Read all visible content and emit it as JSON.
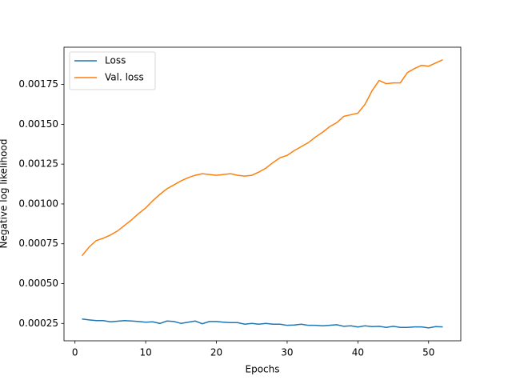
{
  "chart_data": {
    "type": "line",
    "xlabel": "Epochs",
    "ylabel": "Negative log likelihood",
    "x": [
      1,
      2,
      3,
      4,
      5,
      6,
      7,
      8,
      9,
      10,
      11,
      12,
      13,
      14,
      15,
      16,
      17,
      18,
      19,
      20,
      21,
      22,
      23,
      24,
      25,
      26,
      27,
      28,
      29,
      30,
      31,
      32,
      33,
      34,
      35,
      36,
      37,
      38,
      39,
      40,
      41,
      42,
      43,
      44,
      45,
      46,
      47,
      48,
      49,
      50,
      51,
      52
    ],
    "series": [
      {
        "name": "Loss",
        "color": "#1f77b4",
        "values": [
          0.000278,
          0.000272,
          0.000268,
          0.000268,
          0.00026,
          0.000264,
          0.000268,
          0.000265,
          0.000262,
          0.000258,
          0.00026,
          0.00025,
          0.000265,
          0.000262,
          0.00025,
          0.000258,
          0.000265,
          0.000248,
          0.000262,
          0.000262,
          0.000258,
          0.000255,
          0.000255,
          0.000245,
          0.00025,
          0.000245,
          0.00025,
          0.000245,
          0.000245,
          0.000238,
          0.00024,
          0.000245,
          0.000238,
          0.000238,
          0.000235,
          0.000238,
          0.000242,
          0.000232,
          0.000235,
          0.000228,
          0.000235,
          0.00023,
          0.000232,
          0.000225,
          0.000232,
          0.000225,
          0.000225,
          0.000228,
          0.000228,
          0.000222,
          0.00023,
          0.000228
        ]
      },
      {
        "name": "Val. loss",
        "color": "#ff7f0e",
        "values": [
          0.000675,
          0.00073,
          0.00077,
          0.000785,
          0.000805,
          0.00083,
          0.000865,
          0.0009,
          0.00094,
          0.000975,
          0.00102,
          0.00106,
          0.001095,
          0.00112,
          0.001145,
          0.001165,
          0.00118,
          0.00119,
          0.001185,
          0.00118,
          0.001185,
          0.00119,
          0.00118,
          0.001175,
          0.00118,
          0.0012,
          0.001225,
          0.00126,
          0.00129,
          0.001305,
          0.001335,
          0.00136,
          0.001385,
          0.00142,
          0.00145,
          0.001485,
          0.00151,
          0.00155,
          0.00156,
          0.00157,
          0.001625,
          0.00171,
          0.001775,
          0.001755,
          0.00176,
          0.00176,
          0.001825,
          0.00185,
          0.00187,
          0.001865,
          0.001885,
          0.001905
        ]
      }
    ],
    "xlim": [
      -1.55,
      54.55
    ],
    "xticks": [
      0,
      10,
      20,
      30,
      40,
      50
    ],
    "ylim": [
      0.000141,
      0.001984
    ],
    "yticks": [
      0.00025,
      {
        "value": 0.0005,
        "label": "0.00050"
      },
      0.00075,
      {
        "value": 0.001,
        "label": "0.00100"
      },
      0.00125,
      {
        "value": 0.0015,
        "label": "0.00150"
      },
      0.00175
    ],
    "legend": "upper left"
  }
}
